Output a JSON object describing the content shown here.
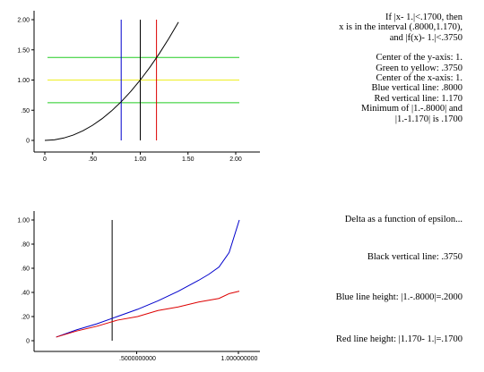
{
  "top_text": {
    "lines1": [
      "If |x- 1.|<.1700, then",
      "x is in the interval (.8000,1.170),",
      "and |f(x)- 1.|<.3750"
    ],
    "lines2": [
      "Center of the y-axis:  1.",
      "Green to yellow:  .3750",
      "Center of the x-axis: 1.",
      "Blue vertical line:  .8000",
      "Red vertical line:  1.170",
      "Minimum of |1.-.8000| and",
      "|1.-1.170| is  .1700"
    ]
  },
  "bottom_text": {
    "title": "Delta as a function of epsilon...",
    "black_line": "Black vertical line:  .3750",
    "blue_height": "Blue line height:  |1.-.8000|=.2000",
    "red_height": "Red line height:  |1.170- 1.|=.1700"
  },
  "colors": {
    "blue": "#0000cc",
    "red": "#dd0000",
    "green": "#22cc22",
    "yellow": "#eeee22",
    "black": "#000000"
  },
  "chart_data": [
    {
      "type": "line",
      "function": "x^2",
      "xlim": [
        0,
        2.0
      ],
      "ylim": [
        0,
        2.0
      ],
      "x_ticks": [
        "0",
        ".50",
        "1.00",
        "1.50",
        "2.00"
      ],
      "x_tick_values": [
        0,
        0.5,
        1.0,
        1.5,
        2.0
      ],
      "y_ticks": [
        "0",
        ".50",
        "1.00",
        "1.50",
        "2.00"
      ],
      "y_tick_values": [
        0,
        0.5,
        1.0,
        1.5,
        2.0
      ],
      "curve": {
        "x": [
          0,
          0.1,
          0.2,
          0.3,
          0.4,
          0.5,
          0.6,
          0.7,
          0.8,
          0.9,
          1.0,
          1.1,
          1.2,
          1.3,
          1.4
        ],
        "y": [
          0,
          0.01,
          0.04,
          0.09,
          0.16,
          0.25,
          0.36,
          0.49,
          0.64,
          0.81,
          1.0,
          1.21,
          1.44,
          1.69,
          1.96
        ],
        "color": "#000000"
      },
      "horizontal_lines": [
        {
          "y": 1.375,
          "color": "#22cc22"
        },
        {
          "y": 1.0,
          "color": "#eeee22"
        },
        {
          "y": 0.625,
          "color": "#22cc22"
        }
      ],
      "vertical_lines": [
        {
          "x": 0.8,
          "color": "#0000cc"
        },
        {
          "x": 1.0,
          "color": "#000000"
        },
        {
          "x": 1.17,
          "color": "#dd0000"
        }
      ],
      "vline_range": [
        0,
        2.0
      ]
    },
    {
      "type": "line",
      "xlim": [
        0,
        1.0
      ],
      "ylim": [
        0,
        1.0
      ],
      "x_ticks": [
        ".5000000000",
        "1.000000000"
      ],
      "x_tick_values": [
        0.5,
        1.0
      ],
      "y_ticks": [
        "0",
        ".20",
        ".40",
        ".60",
        ".80",
        "1.00"
      ],
      "y_tick_values": [
        0,
        0.2,
        0.4,
        0.6,
        0.8,
        1.0
      ],
      "series": [
        {
          "color": "#0000cc",
          "x": [
            0.1,
            0.2,
            0.3,
            0.4,
            0.5,
            0.6,
            0.7,
            0.8,
            0.85,
            0.9,
            0.95,
            1.0
          ],
          "y": [
            0.03,
            0.09,
            0.14,
            0.2,
            0.26,
            0.33,
            0.41,
            0.5,
            0.55,
            0.61,
            0.73,
            1.0
          ]
        },
        {
          "color": "#dd0000",
          "x": [
            0.1,
            0.2,
            0.3,
            0.4,
            0.5,
            0.6,
            0.7,
            0.8,
            0.9,
            0.95,
            1.0
          ],
          "y": [
            0.03,
            0.08,
            0.12,
            0.17,
            0.2,
            0.25,
            0.28,
            0.32,
            0.35,
            0.39,
            0.41
          ]
        }
      ],
      "vertical_lines": [
        {
          "x": 0.375,
          "y_from": 0,
          "y_to": 1.0,
          "color": "#000000"
        }
      ]
    }
  ]
}
